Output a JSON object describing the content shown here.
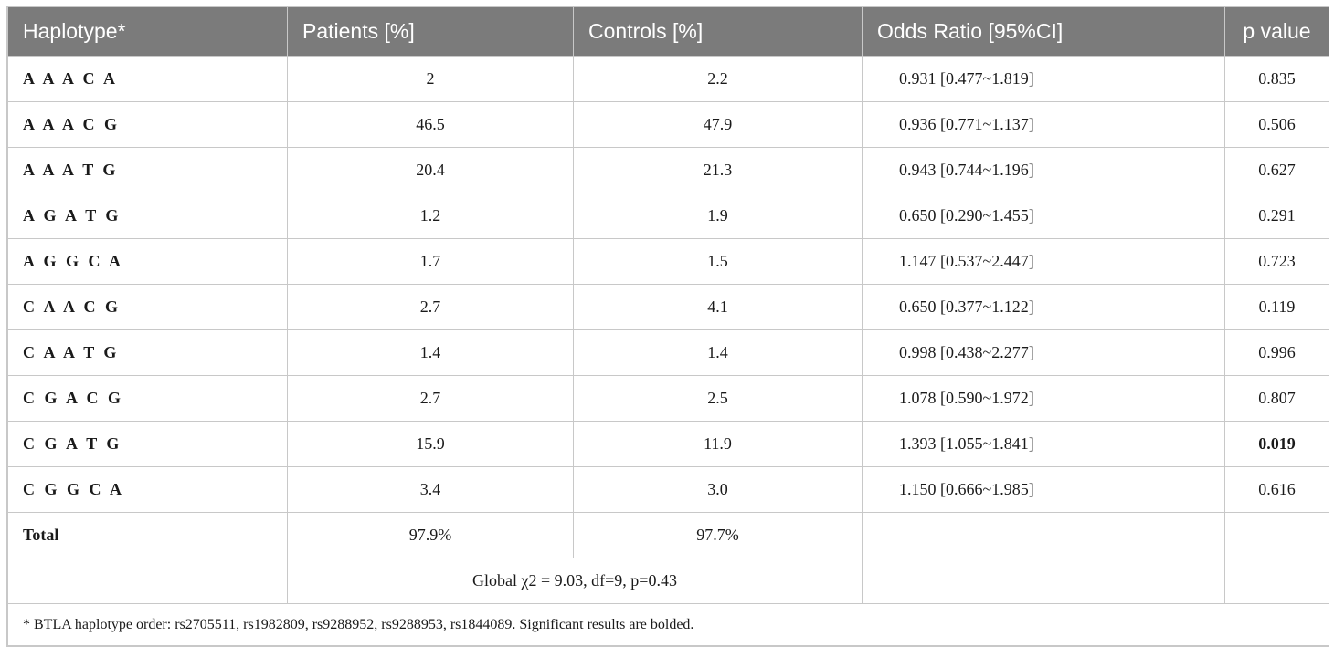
{
  "headers": [
    "Haplotype*",
    "Patients [%]",
    "Controls [%]",
    "Odds Ratio [95%CI]",
    "p value"
  ],
  "rows": [
    {
      "haplotype": "A A A C A",
      "patients": "2",
      "controls": "2.2",
      "odds_ratio": "0.931 [0.477~1.819]",
      "p_value": "0.835",
      "significant": false
    },
    {
      "haplotype": "A A A C G",
      "patients": "46.5",
      "controls": "47.9",
      "odds_ratio": "0.936 [0.771~1.137]",
      "p_value": "0.506",
      "significant": false
    },
    {
      "haplotype": "A A A T G",
      "patients": "20.4",
      "controls": "21.3",
      "odds_ratio": "0.943 [0.744~1.196]",
      "p_value": "0.627",
      "significant": false
    },
    {
      "haplotype": "A G A T G",
      "patients": "1.2",
      "controls": "1.9",
      "odds_ratio": "0.650 [0.290~1.455]",
      "p_value": "0.291",
      "significant": false
    },
    {
      "haplotype": "A G G C A",
      "patients": "1.7",
      "controls": "1.5",
      "odds_ratio": "1.147 [0.537~2.447]",
      "p_value": "0.723",
      "significant": false
    },
    {
      "haplotype": "C A A C G",
      "patients": "2.7",
      "controls": "4.1",
      "odds_ratio": "0.650 [0.377~1.122]",
      "p_value": "0.119",
      "significant": false
    },
    {
      "haplotype": "C A A T G",
      "patients": "1.4",
      "controls": "1.4",
      "odds_ratio": "0.998 [0.438~2.277]",
      "p_value": "0.996",
      "significant": false
    },
    {
      "haplotype": "C G A C G",
      "patients": "2.7",
      "controls": "2.5",
      "odds_ratio": "1.078 [0.590~1.972]",
      "p_value": "0.807",
      "significant": false
    },
    {
      "haplotype": "C G A T G",
      "patients": "15.9",
      "controls": "11.9",
      "odds_ratio": "1.393 [1.055~1.841]",
      "p_value": "0.019",
      "significant": true
    },
    {
      "haplotype": "C G G C A",
      "patients": "3.4",
      "controls": "3.0",
      "odds_ratio": "1.150 [0.666~1.985]",
      "p_value": "0.616",
      "significant": false
    }
  ],
  "total": {
    "label": "Total",
    "patients": "97.9%",
    "controls": "97.7%"
  },
  "global_test": "Global χ2 = 9.03, df=9, p=0.43",
  "footnote": "* BTLA haplotype order: rs2705511, rs1982809, rs9288952, rs9288953, rs1844089. Significant results are bolded."
}
